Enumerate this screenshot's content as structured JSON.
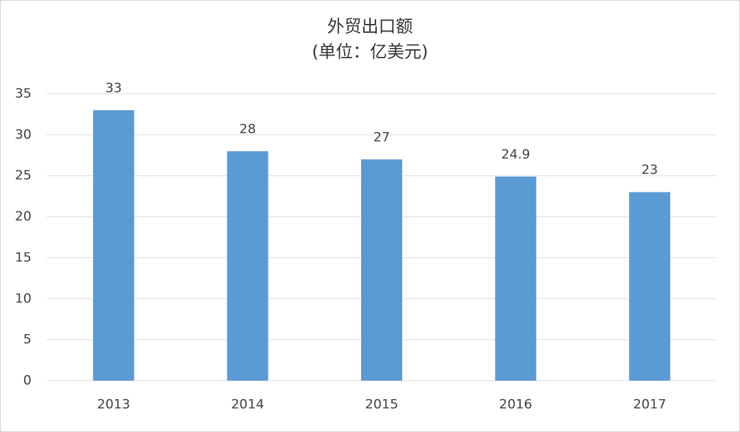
{
  "chart_data": {
    "type": "bar",
    "title": "外贸出口额",
    "subtitle": "(单位：亿美元)",
    "categories": [
      "2013",
      "2014",
      "2015",
      "2016",
      "2017"
    ],
    "values": [
      33,
      28,
      27,
      24.9,
      23
    ],
    "color": "#5b9bd5",
    "ylim": [
      0,
      35
    ],
    "yticks": [
      0,
      5,
      10,
      15,
      20,
      25,
      30,
      35
    ],
    "grid": true
  }
}
